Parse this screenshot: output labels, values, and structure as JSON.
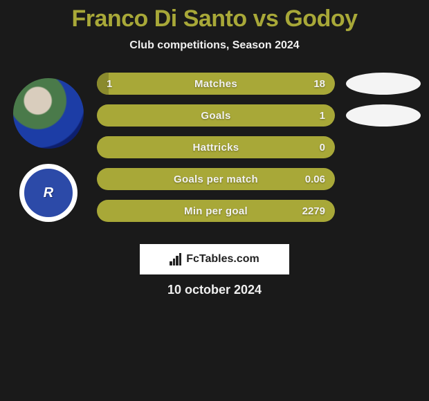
{
  "title": "Franco Di Santo vs Godoy",
  "subtitle": "Club competitions, Season 2024",
  "brand": "FcTables.com",
  "date": "10 october 2024",
  "club_logo_text": "R",
  "colors": {
    "title": "#a8a838",
    "bar_bg": "#a8a838",
    "bar_fill_left": "#8a8a2d",
    "ellipse": "#f4f4f4",
    "background": "#1a1a1a",
    "text": "#f0f0f0"
  },
  "bars": [
    {
      "label": "Matches",
      "left": "1",
      "right": "18",
      "fill_left_pct": 5,
      "show_ellipse": true
    },
    {
      "label": "Goals",
      "left": "",
      "right": "1",
      "fill_left_pct": 0,
      "show_ellipse": true
    },
    {
      "label": "Hattricks",
      "left": "",
      "right": "0",
      "fill_left_pct": 0,
      "show_ellipse": false
    },
    {
      "label": "Goals per match",
      "left": "",
      "right": "0.06",
      "fill_left_pct": 0,
      "show_ellipse": false
    },
    {
      "label": "Min per goal",
      "left": "",
      "right": "2279",
      "fill_left_pct": 0,
      "show_ellipse": false
    }
  ]
}
